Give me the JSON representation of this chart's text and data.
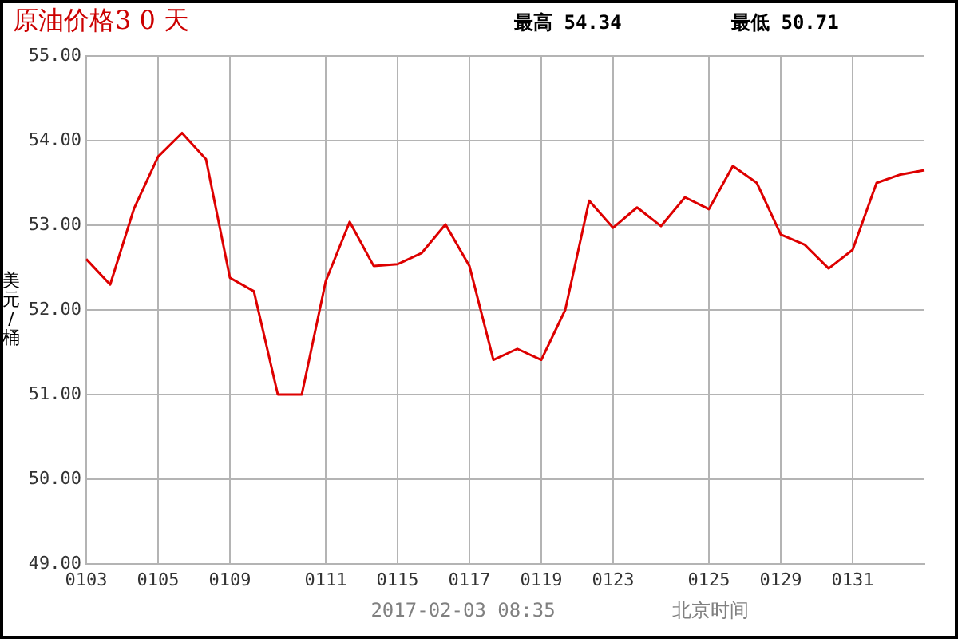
{
  "chart_data": {
    "type": "line",
    "title": "原油价格3 0 天",
    "ylabel": "美元/桶",
    "annotations": [
      "最高 54.34",
      "最低 50.71",
      "2017-02-03 08:35",
      "北京时间"
    ],
    "categories": [
      "0103",
      null,
      null,
      "0105",
      null,
      null,
      "0109",
      null,
      null,
      null,
      "0111",
      null,
      null,
      "0115",
      null,
      null,
      "0117",
      null,
      null,
      "0119",
      null,
      null,
      "0123",
      null,
      null,
      null,
      "0125",
      null,
      null,
      "0129",
      null,
      null,
      "0131",
      null,
      null,
      null
    ],
    "series": [
      {
        "color": "#dd0000",
        "values": [
          52.6,
          52.3,
          53.2,
          53.81,
          54.09,
          53.78,
          52.38,
          52.22,
          51.0,
          51.0,
          52.34,
          53.04,
          52.52,
          52.54,
          52.67,
          53.01,
          52.52,
          51.41,
          51.54,
          51.41,
          52.0,
          53.29,
          52.97,
          53.21,
          52.99,
          53.33,
          53.19,
          53.7,
          53.5,
          52.89,
          52.77,
          52.49,
          52.71,
          53.5,
          53.6,
          53.65
        ]
      }
    ],
    "ylim": [
      49,
      55
    ],
    "yticks": [
      {
        "value": 49,
        "label": "49.00"
      },
      {
        "value": 50,
        "label": "50.00"
      },
      {
        "value": 51,
        "label": "51.00"
      },
      {
        "value": 52,
        "label": "52.00"
      },
      {
        "value": 53,
        "label": "53.00"
      },
      {
        "value": 54,
        "label": "54.00"
      },
      {
        "value": 55,
        "label": "55.00"
      }
    ],
    "grid": true,
    "legend": false,
    "marker": "none",
    "line_style": "solid"
  }
}
